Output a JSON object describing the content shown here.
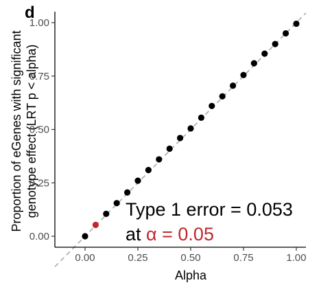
{
  "panel_label": "d",
  "chart_data": {
    "type": "scatter",
    "xlabel": "Alpha",
    "ylabel_lines": [
      "Proportion of eGenes with significant",
      "genotype effect (LRT p < alpha)"
    ],
    "xlim": [
      0,
      1
    ],
    "ylim": [
      0,
      1
    ],
    "x_ticks": [
      0.0,
      0.25,
      0.5,
      0.75,
      1.0
    ],
    "x_tick_labels": [
      "0.00",
      "0.25",
      "0.50",
      "0.75",
      "1.00"
    ],
    "y_ticks": [
      0.0,
      0.25,
      0.5,
      0.75,
      1.0
    ],
    "y_tick_labels": [
      "0.00",
      "0.25",
      "0.50",
      "0.75",
      "1.00"
    ],
    "grid": false,
    "reference_line": {
      "type": "identity",
      "style": "dashed",
      "color": "#b3b3b3"
    },
    "points": [
      {
        "x": 0.0,
        "y": 0.0
      },
      {
        "x": 0.05,
        "y": 0.053,
        "highlight": true
      },
      {
        "x": 0.1,
        "y": 0.105
      },
      {
        "x": 0.15,
        "y": 0.155
      },
      {
        "x": 0.2,
        "y": 0.205
      },
      {
        "x": 0.25,
        "y": 0.26
      },
      {
        "x": 0.3,
        "y": 0.31
      },
      {
        "x": 0.35,
        "y": 0.36
      },
      {
        "x": 0.4,
        "y": 0.41
      },
      {
        "x": 0.45,
        "y": 0.46
      },
      {
        "x": 0.5,
        "y": 0.505
      },
      {
        "x": 0.55,
        "y": 0.555
      },
      {
        "x": 0.6,
        "y": 0.61
      },
      {
        "x": 0.65,
        "y": 0.655
      },
      {
        "x": 0.7,
        "y": 0.705
      },
      {
        "x": 0.75,
        "y": 0.755
      },
      {
        "x": 0.8,
        "y": 0.81
      },
      {
        "x": 0.85,
        "y": 0.855
      },
      {
        "x": 0.9,
        "y": 0.9
      },
      {
        "x": 0.95,
        "y": 0.95
      },
      {
        "x": 1.0,
        "y": 0.995
      }
    ],
    "point_color": "#000000",
    "highlight_color": "#c0272d",
    "annotation": {
      "line1": "Type 1 error = 0.053",
      "line2_prefix": "at ",
      "line2_highlight": "α = 0.05"
    }
  }
}
